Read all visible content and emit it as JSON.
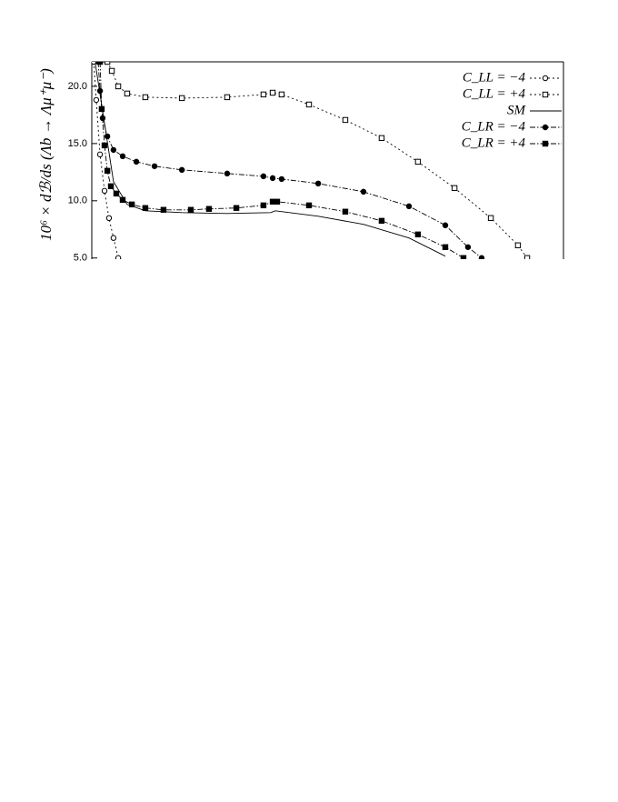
{
  "chart_data": {
    "type": "line",
    "y_label": "10⁶ × dℬ/ds (Λb → Λμ⁺μ⁻)",
    "xlim": [
      0,
      20
    ],
    "ylim": [
      4.9,
      22.14
    ],
    "yticks": [
      {
        "value": 5,
        "label": "5.0"
      },
      {
        "value": 10,
        "label": "10.0"
      },
      {
        "value": 15,
        "label": "15.0"
      },
      {
        "value": 20,
        "label": "20.0"
      }
    ],
    "series": [
      {
        "name": "C_LL = −4",
        "color": "#000",
        "dash": "dotted",
        "marker": "open-circle",
        "x": [
          0.08,
          0.19,
          0.35,
          0.54,
          0.73,
          0.92,
          1.12
        ],
        "values": [
          22.14,
          18.81,
          14.05,
          10.87,
          8.49,
          6.75,
          5.0
        ]
      },
      {
        "name": "C_LL = +4",
        "color": "#000",
        "dash": "dotted",
        "marker": "open-square",
        "x": [
          0.66,
          0.85,
          1.12,
          1.5,
          2.27,
          3.82,
          5.74,
          7.28,
          7.67,
          8.05,
          9.21,
          10.75,
          12.29,
          13.83,
          15.38,
          16.92,
          18.07,
          18.46
        ],
        "values": [
          22.14,
          21.35,
          20.0,
          19.37,
          19.05,
          18.97,
          19.05,
          19.29,
          19.44,
          19.29,
          18.41,
          17.06,
          15.48,
          13.41,
          11.11,
          8.49,
          6.11,
          5.0
        ]
      },
      {
        "name": "SM",
        "color": "#000",
        "dash": "solid",
        "marker": "none",
        "x": [
          0.15,
          0.92,
          1.5,
          2.27,
          3.82,
          5.74,
          7.59,
          7.78,
          9.6,
          11.52,
          13.45,
          14.99
        ],
        "values": [
          21.98,
          11.67,
          9.68,
          9.13,
          8.97,
          8.89,
          8.97,
          9.13,
          8.65,
          7.94,
          6.75,
          5.16
        ]
      },
      {
        "name": "C_LR = −4",
        "color": "#000",
        "dash": "dashdot",
        "marker": "filled-circle",
        "x": [
          0.27,
          0.35,
          0.46,
          0.66,
          0.92,
          1.31,
          1.89,
          2.66,
          3.82,
          5.74,
          7.28,
          7.67,
          8.05,
          9.6,
          11.52,
          13.45,
          14.99,
          15.95,
          16.53
        ],
        "values": [
          22.14,
          19.6,
          17.22,
          15.63,
          14.44,
          13.89,
          13.41,
          13.02,
          12.7,
          12.38,
          12.14,
          11.98,
          11.9,
          11.51,
          10.79,
          9.52,
          7.86,
          5.95,
          5.0
        ]
      },
      {
        "name": "C_LR = +4",
        "color": "#000",
        "dash": "dashdot",
        "marker": "filled-square",
        "x": [
          0.35,
          0.42,
          0.54,
          0.66,
          0.81,
          1.04,
          1.31,
          1.7,
          2.27,
          3.04,
          4.2,
          4.97,
          6.13,
          7.28,
          7.67,
          7.86,
          9.21,
          10.75,
          12.29,
          13.83,
          14.99,
          15.76
        ],
        "values": [
          22.14,
          18.02,
          14.84,
          12.62,
          11.27,
          10.63,
          10.08,
          9.68,
          9.37,
          9.21,
          9.21,
          9.29,
          9.37,
          9.6,
          9.92,
          9.92,
          9.6,
          9.05,
          8.25,
          7.06,
          5.95,
          5.0
        ]
      }
    ]
  }
}
